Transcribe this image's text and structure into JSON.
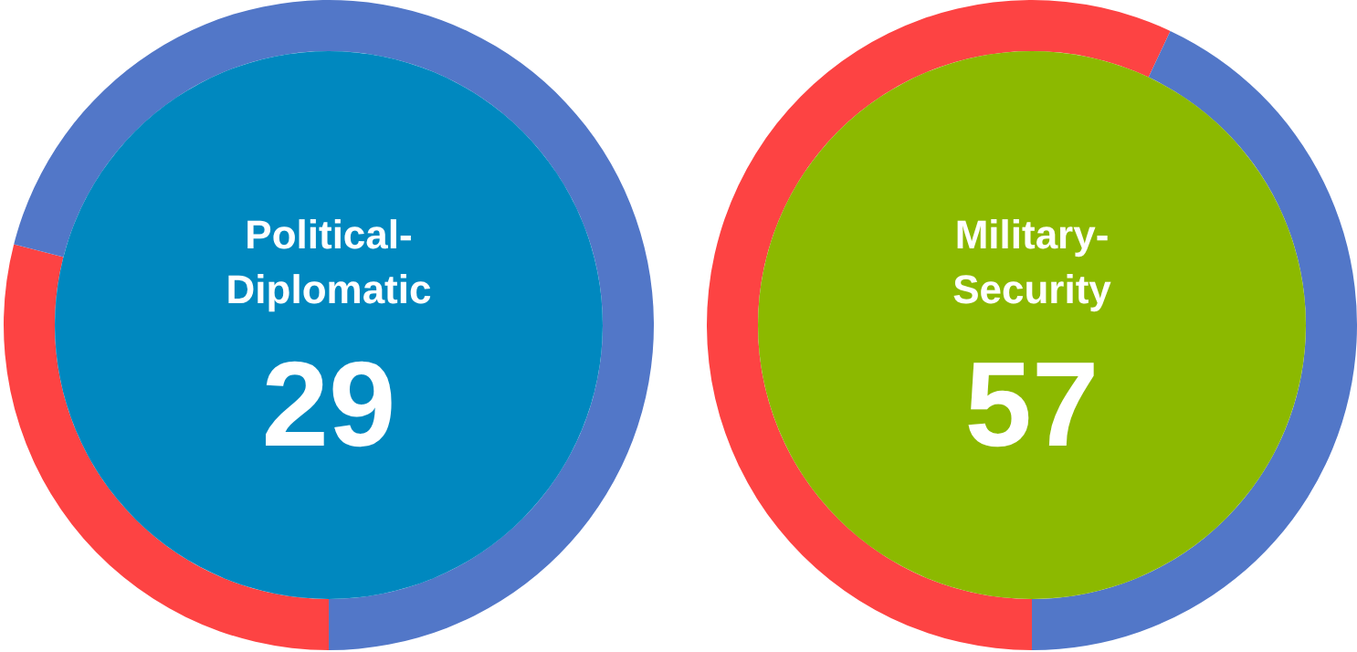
{
  "chart_data": [
    {
      "type": "donut",
      "title": "Political-Diplomatic",
      "categories": [
        null,
        null
      ],
      "values": [
        29,
        71
      ],
      "colors": [
        "#fd4343",
        "#5277c8"
      ],
      "value_labels": [
        "29",
        null
      ]
    },
    {
      "type": "donut",
      "title": "Military-Security",
      "categories": [
        null,
        null
      ],
      "values": [
        57,
        43
      ],
      "colors": [
        "#fd4343",
        "#5277c8"
      ],
      "value_labels": [
        "57",
        null
      ]
    }
  ]
}
